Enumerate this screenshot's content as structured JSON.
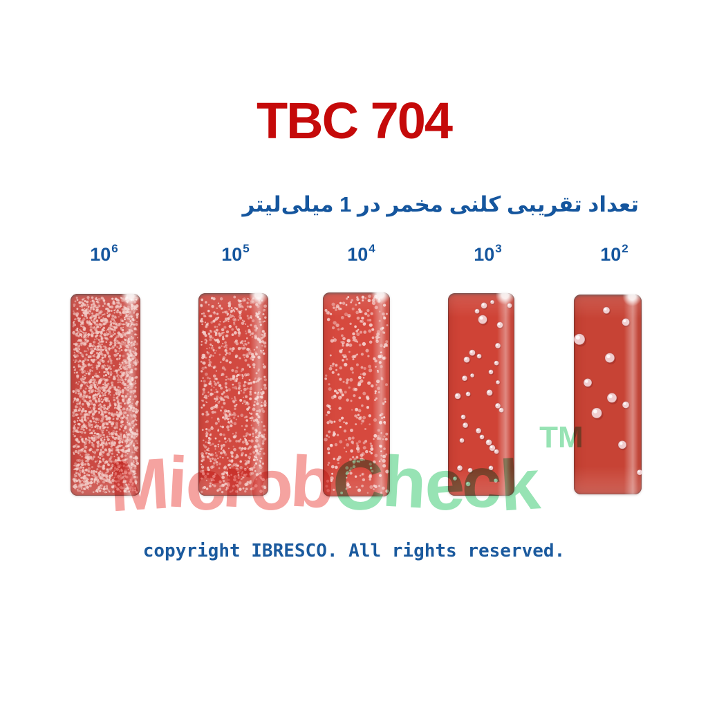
{
  "title": {
    "text": "TBC 704"
  },
  "subtitle": {
    "text": "تعداد تقریبی کلنی مخمر در 1 میلی‌لیتر"
  },
  "watermark": {
    "part1": "Microb",
    "part2": "Check",
    "tm": "TM"
  },
  "footer": {
    "text": "copyright IBRESCO. All rights reserved."
  },
  "colors": {
    "title_red": "#c50a0a",
    "blue": "#15569e",
    "footer_blue": "#1b5a9e",
    "watermark_pink": "#f5a3a0",
    "watermark_green": "#97e3b4"
  },
  "strips": [
    {
      "base": "10",
      "exp": "6",
      "bg": "#cb4a43",
      "dot_fill": "#f2c9c4",
      "dots": {
        "count": 2200,
        "rmin": 0.9,
        "rmax": 2.3,
        "seed": 11
      }
    },
    {
      "base": "10",
      "exp": "5",
      "bg": "#d14940",
      "dot_fill": "#f4cfcb",
      "dots": {
        "count": 950,
        "rmin": 1.0,
        "rmax": 2.4,
        "seed": 22
      }
    },
    {
      "base": "10",
      "exp": "4",
      "bg": "#d6493e",
      "dot_fill": "#f6d5d2",
      "dots": {
        "count": 400,
        "rmin": 1.2,
        "rmax": 2.7,
        "seed": 33
      }
    },
    {
      "base": "10",
      "exp": "3",
      "bg": "#cf4336",
      "dot_fill": "#f0caca",
      "colonies": [
        [
          0.542,
          0.061,
          4.5
        ],
        [
          0.667,
          0.044,
          3
        ],
        [
          0.438,
          0.089,
          3.5
        ],
        [
          0.521,
          0.13,
          6.5
        ],
        [
          0.781,
          0.157,
          4.5
        ],
        [
          0.927,
          0.061,
          3.5
        ],
        [
          0.75,
          0.259,
          4
        ],
        [
          0.365,
          0.294,
          4.5
        ],
        [
          0.281,
          0.328,
          4.5
        ],
        [
          0.469,
          0.311,
          3.5
        ],
        [
          0.729,
          0.345,
          3.5
        ],
        [
          0.25,
          0.42,
          4
        ],
        [
          0.365,
          0.406,
          3
        ],
        [
          0.646,
          0.389,
          3.5
        ],
        [
          0.75,
          0.44,
          3
        ],
        [
          0.146,
          0.508,
          4.5
        ],
        [
          0.302,
          0.498,
          3.5
        ],
        [
          0.625,
          0.491,
          4.5
        ],
        [
          0.75,
          0.556,
          4
        ],
        [
          0.802,
          0.577,
          3.5
        ],
        [
          0.229,
          0.611,
          3.5
        ],
        [
          0.26,
          0.652,
          4
        ],
        [
          0.458,
          0.679,
          4
        ],
        [
          0.51,
          0.71,
          3.5
        ],
        [
          0.615,
          0.737,
          4.5
        ],
        [
          0.667,
          0.764,
          4.5
        ],
        [
          0.729,
          0.782,
          3.5
        ],
        [
          0.208,
          0.727,
          3.5
        ],
        [
          0.177,
          0.863,
          4
        ],
        [
          0.333,
          0.874,
          3.5
        ],
        [
          0.646,
          0.863,
          3.5
        ],
        [
          0.104,
          0.915,
          3
        ],
        [
          0.302,
          0.942,
          3.5
        ],
        [
          0.719,
          0.925,
          3
        ]
      ]
    },
    {
      "base": "10",
      "exp": "2",
      "bg": "#c74335",
      "dot_fill": "#f0ccce",
      "colonies": [
        [
          0.48,
          0.079,
          5
        ],
        [
          0.765,
          0.138,
          5.5
        ],
        [
          0.082,
          0.224,
          8
        ],
        [
          0.53,
          0.317,
          7
        ],
        [
          0.204,
          0.441,
          6
        ],
        [
          0.561,
          0.517,
          7
        ],
        [
          0.765,
          0.552,
          5
        ],
        [
          0.337,
          0.593,
          7.5
        ],
        [
          0.714,
          0.752,
          6
        ],
        [
          0.97,
          0.89,
          4
        ]
      ]
    }
  ]
}
